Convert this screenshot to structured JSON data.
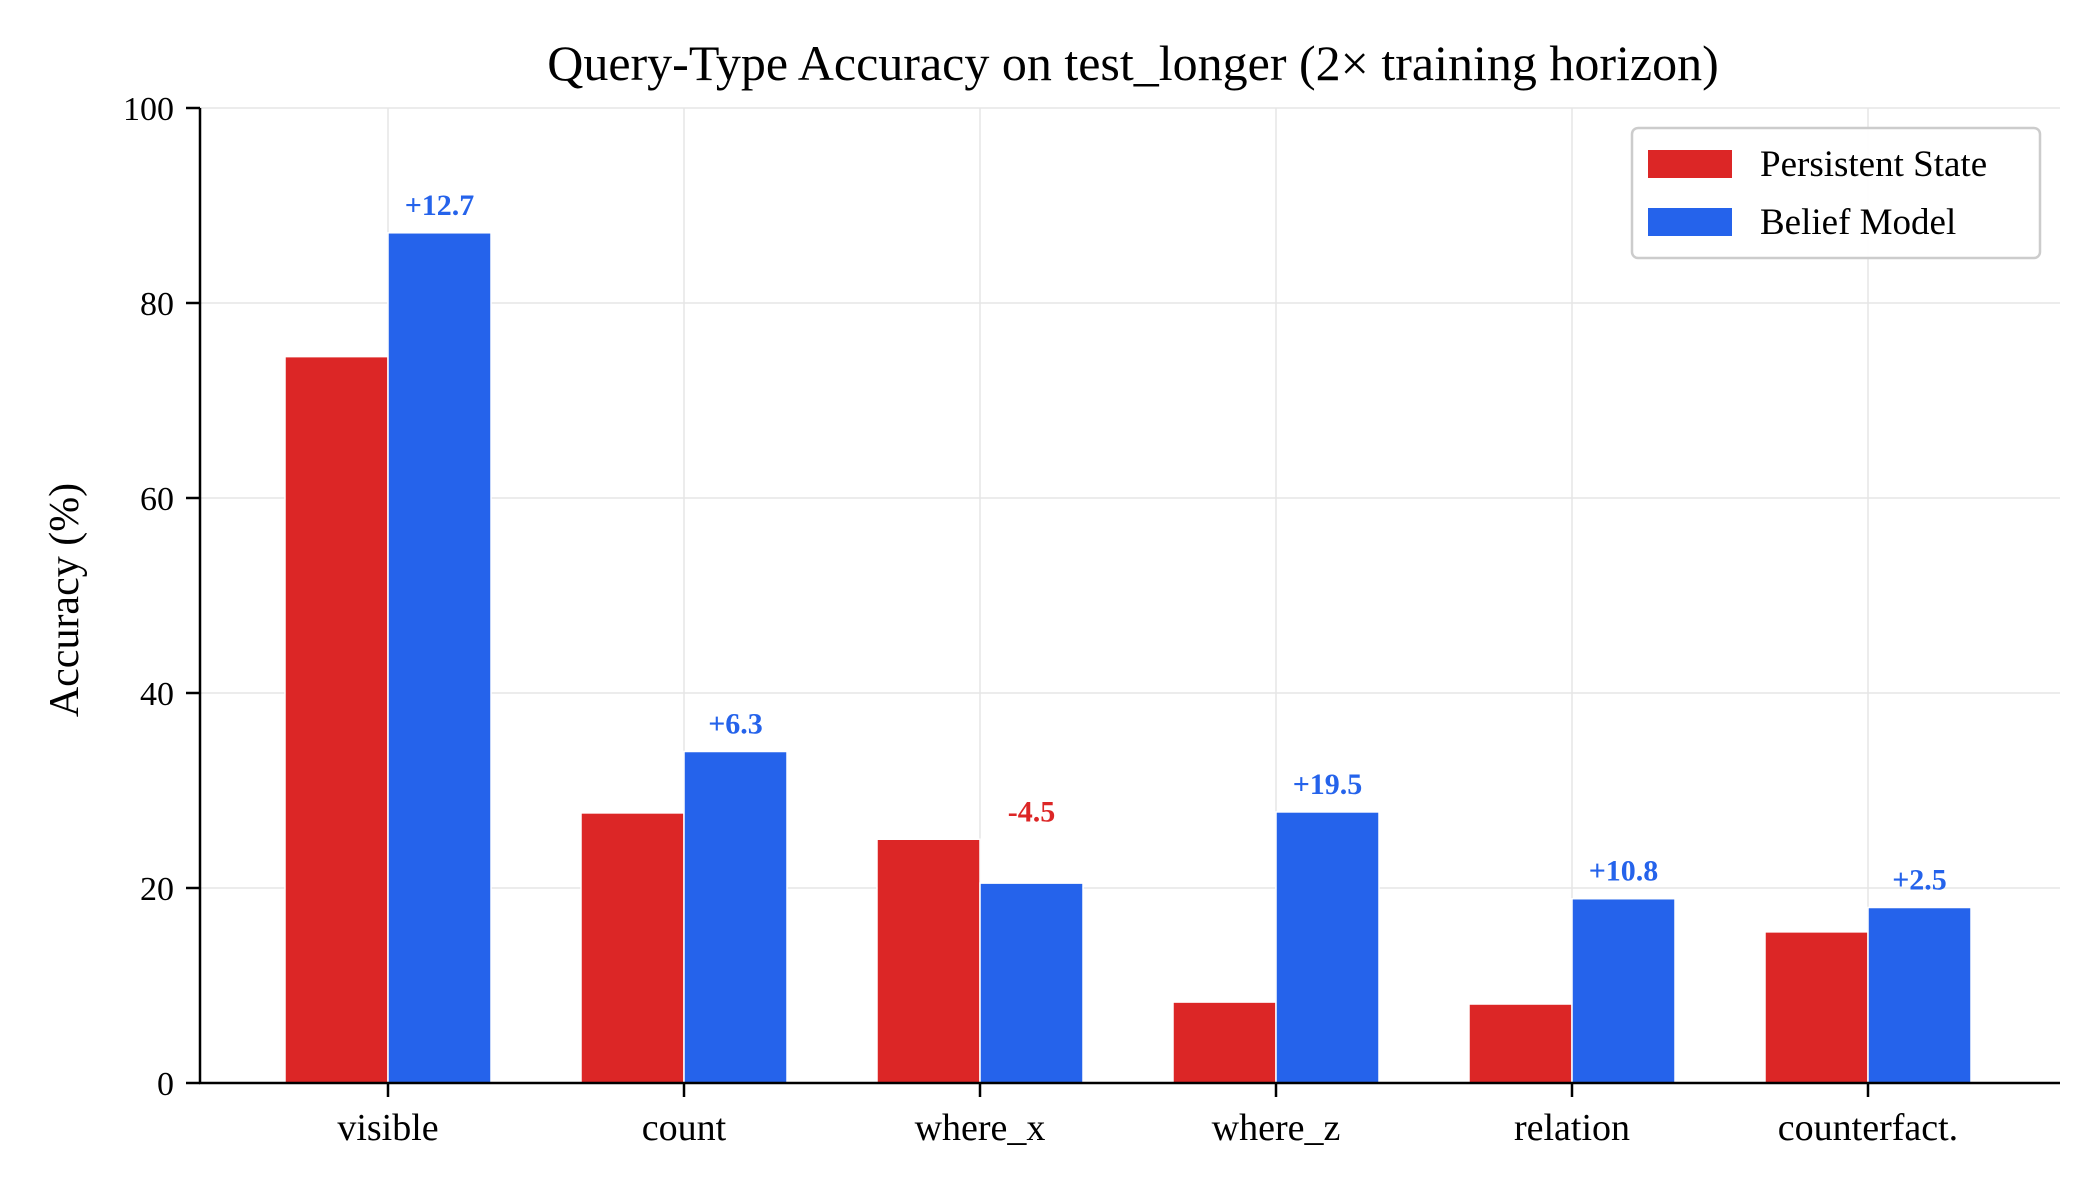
{
  "chart_data": {
    "type": "bar",
    "title": "Query-Type Accuracy on test_longer (2× training horizon)",
    "xlabel": "",
    "ylabel": "Accuracy (%)",
    "ylim": [
      0,
      100
    ],
    "yticks": [
      0,
      20,
      40,
      60,
      80,
      100
    ],
    "grid": true,
    "legend_position": "top-right",
    "categories": [
      "visible",
      "count",
      "where_x",
      "where_z",
      "relation",
      "counterfact."
    ],
    "series": [
      {
        "name": "Persistent State",
        "color": "#dc2626",
        "values": [
          74.5,
          27.7,
          25.0,
          8.3,
          8.1,
          15.5
        ]
      },
      {
        "name": "Belief Model",
        "color": "#2563eb",
        "values": [
          87.2,
          34.0,
          20.5,
          27.8,
          18.9,
          18.0
        ]
      }
    ],
    "annotations": [
      {
        "category": "visible",
        "text": "+12.7",
        "color": "#2563eb"
      },
      {
        "category": "count",
        "text": "+6.3",
        "color": "#2563eb"
      },
      {
        "category": "where_x",
        "text": "-4.5",
        "color": "#dc2626"
      },
      {
        "category": "where_z",
        "text": "+19.5",
        "color": "#2563eb"
      },
      {
        "category": "relation",
        "text": "+10.8",
        "color": "#2563eb"
      },
      {
        "category": "counterfact.",
        "text": "+2.5",
        "color": "#2563eb"
      }
    ]
  }
}
